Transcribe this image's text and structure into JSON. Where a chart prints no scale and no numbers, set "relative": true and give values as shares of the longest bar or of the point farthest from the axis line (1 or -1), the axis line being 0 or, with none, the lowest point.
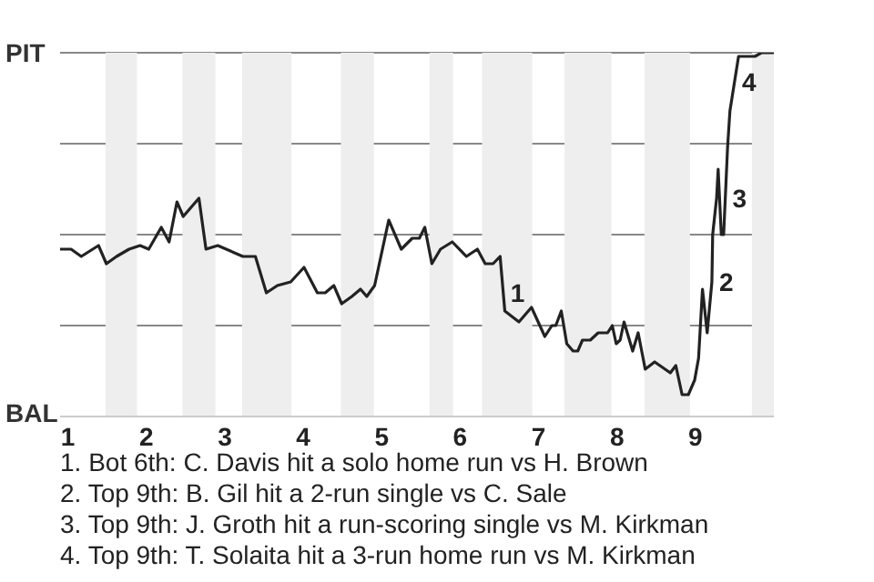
{
  "chart_data": {
    "type": "line",
    "relative": true,
    "x": [
      0.91,
      1.04,
      1.17,
      1.39,
      1.49,
      1.62,
      1.78,
      1.92,
      2.03,
      2.19,
      2.29,
      2.39,
      2.47,
      2.67,
      2.76,
      2.91,
      3.23,
      3.39,
      3.53,
      3.67,
      3.84,
      4.01,
      4.18,
      4.28,
      4.39,
      4.49,
      4.62,
      4.73,
      4.81,
      4.91,
      5.09,
      5.25,
      5.39,
      5.48,
      5.55,
      5.64,
      5.75,
      5.9,
      6.08,
      6.22,
      6.32,
      6.42,
      6.51,
      6.57,
      6.75,
      6.91,
      7.08,
      7.17,
      7.22,
      7.29,
      7.36,
      7.44,
      7.5,
      7.56,
      7.66,
      7.76,
      7.88,
      7.94,
      7.99,
      8.04,
      8.09,
      8.2,
      8.27,
      8.36,
      8.48,
      8.68,
      8.75,
      8.83,
      8.91,
      8.99,
      9.04,
      9.09,
      9.15,
      9.21,
      9.22,
      9.27,
      9.29,
      9.33,
      9.36,
      9.41,
      9.44,
      9.55,
      9.76,
      9.84,
      10
    ],
    "series": [
      {
        "color": "#222222",
        "values": [
          0.46,
          0.46,
          0.44,
          0.47,
          0.42,
          0.44,
          0.46,
          0.47,
          0.46,
          0.52,
          0.48,
          0.59,
          0.55,
          0.6,
          0.46,
          0.47,
          0.44,
          0.44,
          0.34,
          0.36,
          0.37,
          0.41,
          0.34,
          0.34,
          0.36,
          0.31,
          0.33,
          0.35,
          0.33,
          0.36,
          0.54,
          0.46,
          0.49,
          0.49,
          0.52,
          0.42,
          0.46,
          0.48,
          0.44,
          0.46,
          0.42,
          0.42,
          0.44,
          0.29,
          0.26,
          0.3,
          0.22,
          0.25,
          0.25,
          0.29,
          0.2,
          0.18,
          0.18,
          0.21,
          0.21,
          0.23,
          0.23,
          0.25,
          0.2,
          0.21,
          0.26,
          0.18,
          0.23,
          0.13,
          0.15,
          0.12,
          0.14,
          0.06,
          0.06,
          0.1,
          0.16,
          0.35,
          0.23,
          0.37,
          0.5,
          0.6,
          0.68,
          0.5,
          0.5,
          0.74,
          0.84,
          0.99,
          0.99,
          1,
          1
        ]
      }
    ],
    "xlim": [
      0.9,
      10
    ],
    "xticks": [
      1,
      2,
      3,
      4,
      5,
      6,
      7,
      8,
      9
    ],
    "grid": "y",
    "legend": false,
    "marker": "none",
    "line_style": "solid",
    "bands": [
      {
        "axis": "x",
        "from": 1.48,
        "to": 1.88,
        "color": "#eeeeee"
      },
      {
        "axis": "x",
        "from": 2.46,
        "to": 2.88,
        "color": "#eeeeee"
      },
      {
        "axis": "x",
        "from": 3.22,
        "to": 3.85,
        "color": "#eeeeee"
      },
      {
        "axis": "x",
        "from": 4.48,
        "to": 4.9,
        "color": "#eeeeee"
      },
      {
        "axis": "x",
        "from": 5.61,
        "to": 5.91,
        "color": "#eeeeee"
      },
      {
        "axis": "x",
        "from": 6.28,
        "to": 6.92,
        "color": "#eeeeee"
      },
      {
        "axis": "x",
        "from": 7.33,
        "to": 7.93,
        "color": "#eeeeee"
      },
      {
        "axis": "x",
        "from": 8.35,
        "to": 8.93,
        "color": "#eeeeee"
      },
      {
        "axis": "x",
        "from": 9.72,
        "to": 10,
        "color": "#eeeeee"
      }
    ],
    "annotations": [
      "PIT",
      "BAL",
      {
        "text": "1",
        "x": 6.55,
        "y": 0.34
      },
      {
        "text": "2",
        "x": 9.21,
        "y": 0.37
      },
      {
        "text": "3",
        "x": 9.38,
        "y": 0.6
      },
      {
        "text": "4",
        "x": 9.5,
        "y": 0.92
      },
      "1. Bot 6th: C. Davis hit a solo home run vs H. Brown",
      "2. Top 9th: B. Gil hit a 2-run single vs C. Sale",
      "3. Top 9th: J. Groth hit a run-scoring single vs M. Kirkman",
      "4. Top 9th: T. Solaita hit a 3-run home run vs M. Kirkman"
    ]
  }
}
